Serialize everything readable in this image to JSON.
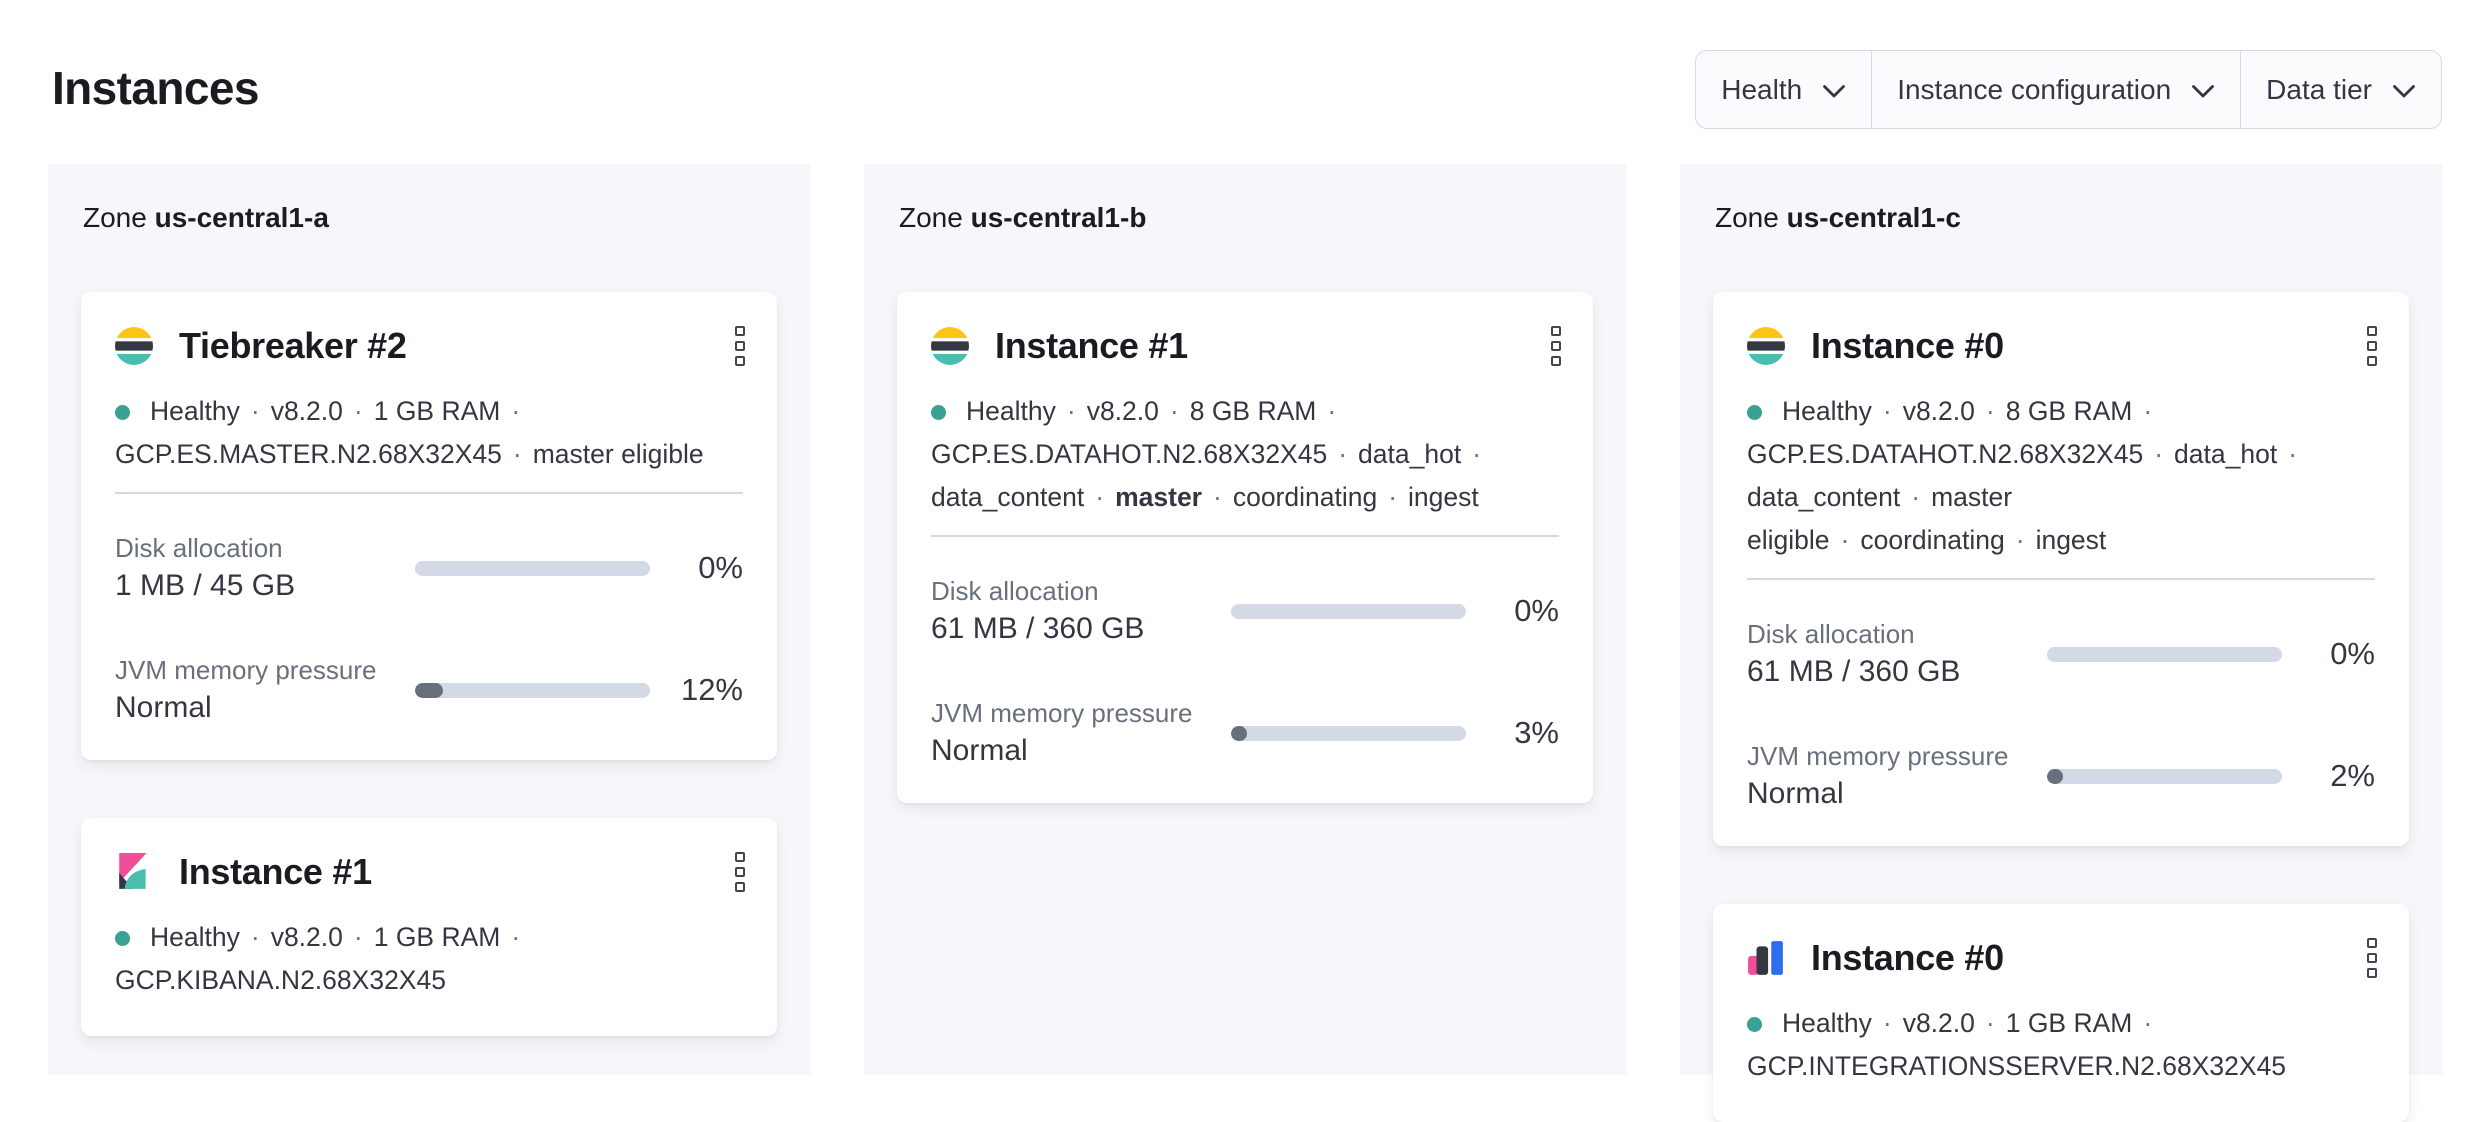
{
  "page": {
    "title": "Instances"
  },
  "filters": [
    {
      "label": "Health"
    },
    {
      "label": "Instance configuration"
    },
    {
      "label": "Data tier"
    }
  ],
  "meta_separator": "·",
  "colors": {
    "healthy_dot": "#38a294",
    "panel_background": "#f5f7fa",
    "bar_track": "#d3dae6",
    "bar_fill": "#69707d",
    "logo_yellow": "#fec514",
    "logo_dark": "#343741",
    "logo_teal": "#49beae",
    "logo_pink": "#f04e98",
    "logo_blue": "#2d6df0"
  },
  "zones": [
    {
      "label_prefix": "Zone",
      "name": "us-central1-a",
      "cards": [
        {
          "icon": "elasticsearch-logo",
          "title": "Tiebreaker #2",
          "health": "Healthy",
          "meta_lines": [
            {
              "trailing_sep": true,
              "segments": [
                {
                  "t": "Healthy"
                },
                {
                  "t": "v8.2.0"
                },
                {
                  "t": "1 GB RAM"
                }
              ]
            },
            {
              "trailing_sep": false,
              "segments": [
                {
                  "t": "GCP.ES.MASTER.N2.68X32X45"
                },
                {
                  "t": "master eligible"
                }
              ]
            }
          ],
          "metrics": [
            {
              "label": "Disk allocation",
              "value": "1 MB / 45 GB",
              "percent": "0%",
              "fill_pct": 0
            },
            {
              "label": "JVM memory pressure",
              "value": "Normal",
              "percent": "12%",
              "fill_pct": 12
            }
          ]
        },
        {
          "icon": "kibana-logo",
          "title": "Instance #1",
          "health": "Healthy",
          "meta_lines": [
            {
              "trailing_sep": true,
              "segments": [
                {
                  "t": "Healthy"
                },
                {
                  "t": "v8.2.0"
                },
                {
                  "t": "1 GB RAM"
                }
              ]
            },
            {
              "trailing_sep": false,
              "segments": [
                {
                  "t": "GCP.KIBANA.N2.68X32X45"
                }
              ]
            }
          ],
          "metrics": []
        }
      ]
    },
    {
      "label_prefix": "Zone",
      "name": "us-central1-b",
      "cards": [
        {
          "icon": "elasticsearch-logo",
          "title": "Instance #1",
          "health": "Healthy",
          "meta_lines": [
            {
              "trailing_sep": true,
              "segments": [
                {
                  "t": "Healthy"
                },
                {
                  "t": "v8.2.0"
                },
                {
                  "t": "8 GB RAM"
                }
              ]
            },
            {
              "trailing_sep": true,
              "segments": [
                {
                  "t": "GCP.ES.DATAHOT.N2.68X32X45"
                },
                {
                  "t": "data_hot"
                }
              ]
            },
            {
              "trailing_sep": false,
              "segments": [
                {
                  "t": "data_content"
                },
                {
                  "t": "master",
                  "bold": true
                },
                {
                  "t": "coordinating"
                },
                {
                  "t": "ingest"
                }
              ]
            }
          ],
          "metrics": [
            {
              "label": "Disk allocation",
              "value": "61 MB / 360 GB",
              "percent": "0%",
              "fill_pct": 0
            },
            {
              "label": "JVM memory pressure",
              "value": "Normal",
              "percent": "3%",
              "fill_pct": 3
            }
          ]
        }
      ]
    },
    {
      "label_prefix": "Zone",
      "name": "us-central1-c",
      "cards": [
        {
          "icon": "elasticsearch-logo",
          "title": "Instance #0",
          "health": "Healthy",
          "meta_lines": [
            {
              "trailing_sep": true,
              "segments": [
                {
                  "t": "Healthy"
                },
                {
                  "t": "v8.2.0"
                },
                {
                  "t": "8 GB RAM"
                }
              ]
            },
            {
              "trailing_sep": true,
              "segments": [
                {
                  "t": "GCP.ES.DATAHOT.N2.68X32X45"
                },
                {
                  "t": "data_hot"
                }
              ]
            },
            {
              "trailing_sep": false,
              "segments": [
                {
                  "t": "data_content"
                },
                {
                  "t": "master eligible"
                },
                {
                  "t": "coordinating"
                },
                {
                  "t": "ingest"
                }
              ]
            }
          ],
          "metrics": [
            {
              "label": "Disk allocation",
              "value": "61 MB / 360 GB",
              "percent": "0%",
              "fill_pct": 0
            },
            {
              "label": "JVM memory pressure",
              "value": "Normal",
              "percent": "2%",
              "fill_pct": 2
            }
          ]
        },
        {
          "icon": "integrations-server-logo",
          "title": "Instance #0",
          "health": "Healthy",
          "meta_lines": [
            {
              "trailing_sep": true,
              "segments": [
                {
                  "t": "Healthy"
                },
                {
                  "t": "v8.2.0"
                },
                {
                  "t": "1 GB RAM"
                }
              ]
            },
            {
              "trailing_sep": false,
              "segments": [
                {
                  "t": "GCP.INTEGRATIONSSERVER.N2.68X32X45"
                }
              ]
            }
          ],
          "metrics": []
        }
      ]
    }
  ]
}
